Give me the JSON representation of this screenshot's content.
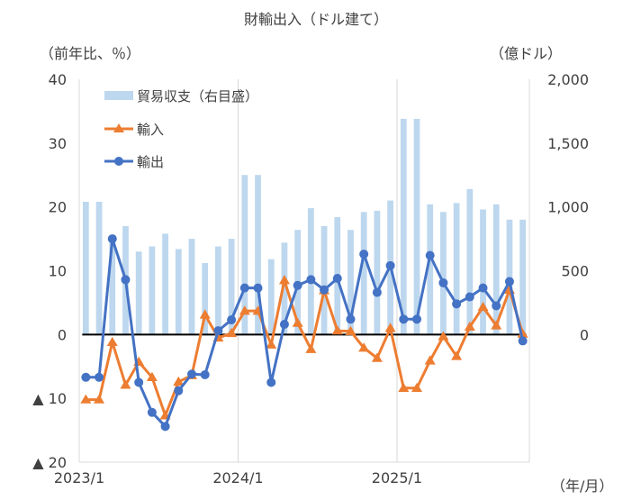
{
  "chart_data": {
    "type": "bar+line",
    "title": "財輸出入（ドル建て）",
    "left_axis_unit": "（前年比、％）",
    "right_axis_unit": "（億ドル）",
    "x_unit": "（年/月）",
    "left_ylim": [
      -20,
      40
    ],
    "right_ylim": [
      -1000,
      2000
    ],
    "left_ticks": [
      {
        "value": 40,
        "label": "40"
      },
      {
        "value": 30,
        "label": "30"
      },
      {
        "value": 20,
        "label": "20"
      },
      {
        "value": 10,
        "label": "10"
      },
      {
        "value": 0,
        "label": "0"
      },
      {
        "value": -10,
        "label": "▲ 10"
      },
      {
        "value": -20,
        "label": "▲ 20"
      }
    ],
    "right_ticks": [
      {
        "value": 2000,
        "label": "2,000"
      },
      {
        "value": 1500,
        "label": "1,500"
      },
      {
        "value": 1000,
        "label": "1,000"
      },
      {
        "value": 500,
        "label": "500"
      },
      {
        "value": 0,
        "label": "0"
      }
    ],
    "x_tick_labels": [
      {
        "index": 0,
        "label": "2023/1"
      },
      {
        "index": 12,
        "label": "2024/1"
      },
      {
        "index": 24,
        "label": "2025/1"
      }
    ],
    "months": 34,
    "legend": [
      "貿易収支（右目盛）",
      "輸入",
      "輸出"
    ],
    "series": [
      {
        "name": "貿易収支（右目盛）",
        "type": "bar",
        "axis": "right",
        "color": "#bdd7ee",
        "values": [
          1040,
          1040,
          760,
          850,
          650,
          690,
          790,
          670,
          750,
          560,
          690,
          750,
          1250,
          1250,
          590,
          720,
          820,
          990,
          850,
          920,
          820,
          960,
          970,
          1050,
          1690,
          1690,
          1020,
          960,
          1030,
          1140,
          980,
          1020,
          900,
          900
        ]
      },
      {
        "name": "輸入",
        "type": "line",
        "axis": "left",
        "color": "#ed7d31",
        "marker": "triangle",
        "values": [
          -10.2,
          -10.2,
          -1.2,
          -7.9,
          -4.3,
          -6.7,
          -12.7,
          -7.4,
          -6.4,
          3.1,
          -0.5,
          0.2,
          3.7,
          3.7,
          -1.6,
          8.5,
          1.8,
          -2.3,
          6.9,
          0.6,
          0.5,
          -2.1,
          -3.7,
          1.0,
          -8.4,
          -8.4,
          -4.1,
          -0.3,
          -3.4,
          1.2,
          4.3,
          1.4,
          7.0,
          0.1
        ]
      },
      {
        "name": "輸出",
        "type": "line",
        "axis": "left",
        "color": "#4472c4",
        "marker": "circle",
        "values": [
          -6.7,
          -6.7,
          15.0,
          8.6,
          -7.5,
          -12.2,
          -14.4,
          -8.8,
          -6.2,
          -6.3,
          0.6,
          2.3,
          7.3,
          7.3,
          -7.5,
          1.6,
          7.7,
          8.6,
          7.0,
          8.8,
          2.4,
          12.6,
          6.6,
          10.8,
          2.4,
          2.4,
          12.4,
          8.1,
          4.8,
          5.9,
          7.3,
          4.5,
          8.3,
          -1.0
        ]
      }
    ]
  }
}
